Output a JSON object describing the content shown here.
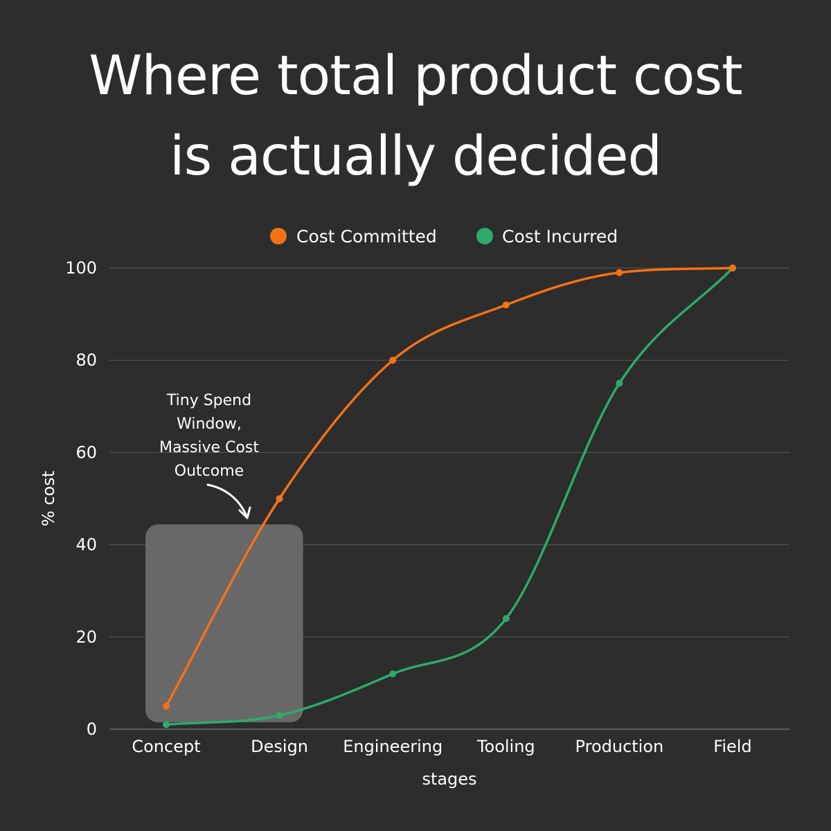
{
  "title": {
    "line1": "Where total product cost",
    "line2": "is actually decided"
  },
  "chart_data": {
    "type": "line",
    "categories": [
      "Concept",
      "Design",
      "Engineering",
      "Tooling",
      "Production",
      "Field"
    ],
    "series": [
      {
        "name": "Cost Committed",
        "color": "#f47216",
        "values": [
          5,
          50,
          80,
          92,
          99,
          100
        ]
      },
      {
        "name": "Cost Incurred",
        "color": "#2eaa6c",
        "values": [
          1,
          3,
          12,
          24,
          75,
          100
        ]
      }
    ],
    "xlabel": "stages",
    "ylabel": "% cost",
    "ylim": [
      0,
      100
    ],
    "yticks": [
      0,
      20,
      40,
      60,
      80,
      100
    ],
    "grid": true,
    "legend_position": "top",
    "annotation": {
      "lines": [
        "Tiny Spend",
        "Window,",
        "Massive Cost",
        "Outcome"
      ],
      "highlight_range": {
        "from_category": "Concept",
        "to_category": "Design",
        "y_from": 0,
        "y_to": 45
      }
    }
  },
  "colors": {
    "background": "#2d2d2d",
    "grid": "#5a5a5a",
    "highlight": "#6b6b6b"
  }
}
